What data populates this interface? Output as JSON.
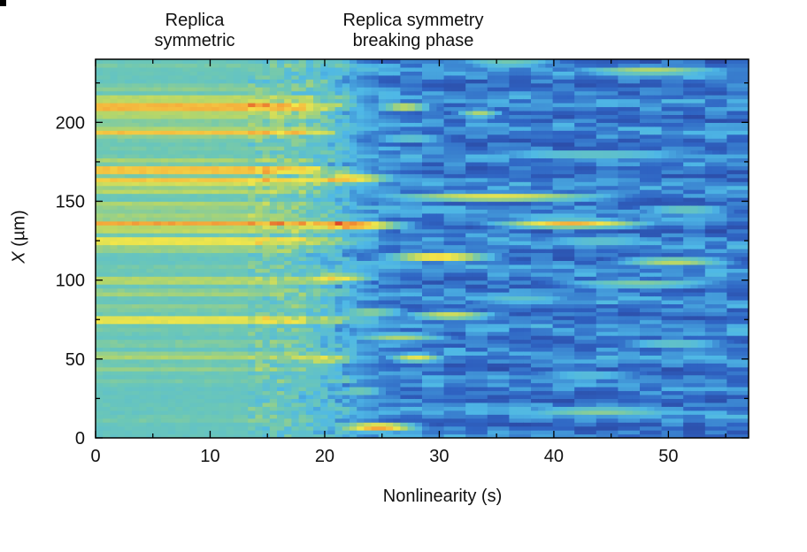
{
  "labels": {
    "phase_left": [
      "Replica",
      "symmetric"
    ],
    "phase_right": [
      "Replica symmetry",
      "breaking phase"
    ]
  },
  "chart_data": {
    "type": "heatmap",
    "xlabel": "Nonlinearity (s)",
    "ylabel_var": "X",
    "ylabel_unit": "(µm)",
    "xlim": [
      0,
      57
    ],
    "ylim": [
      0,
      240
    ],
    "x_ticks": [
      0,
      10,
      20,
      30,
      40,
      50
    ],
    "y_ticks": [
      0,
      50,
      100,
      150,
      200
    ],
    "transition_x": 21,
    "colormap": [
      "#2a3f98",
      "#2f64c3",
      "#4fb8e6",
      "#6cc7b6",
      "#b5d66a",
      "#f2e64a",
      "#f5a63a",
      "#d6291e"
    ],
    "bands_symmetric": [
      {
        "y": 5,
        "level": 0.4
      },
      {
        "y": 12,
        "level": 0.45
      },
      {
        "y": 20,
        "level": 0.42
      },
      {
        "y": 28,
        "level": 0.4
      },
      {
        "y": 36,
        "level": 0.45
      },
      {
        "y": 44,
        "level": 0.5
      },
      {
        "y": 52,
        "level": 0.58
      },
      {
        "y": 60,
        "level": 0.48
      },
      {
        "y": 68,
        "level": 0.45
      },
      {
        "y": 75,
        "level": 0.78
      },
      {
        "y": 83,
        "level": 0.5
      },
      {
        "y": 92,
        "level": 0.55
      },
      {
        "y": 100,
        "level": 0.62
      },
      {
        "y": 108,
        "level": 0.45
      },
      {
        "y": 113,
        "level": 0.12
      },
      {
        "y": 120,
        "level": 0.55
      },
      {
        "y": 125,
        "level": 0.8
      },
      {
        "y": 132,
        "level": 0.62
      },
      {
        "y": 136,
        "level": 0.86
      },
      {
        "y": 142,
        "level": 0.55
      },
      {
        "y": 148,
        "level": 0.58
      },
      {
        "y": 157,
        "level": 0.6
      },
      {
        "y": 163,
        "level": 0.82
      },
      {
        "y": 170,
        "level": 0.92
      },
      {
        "y": 176,
        "level": 0.55
      },
      {
        "y": 183,
        "level": 0.45
      },
      {
        "y": 188,
        "level": 0.45
      },
      {
        "y": 194,
        "level": 0.8
      },
      {
        "y": 200,
        "level": 0.5
      },
      {
        "y": 205,
        "level": 0.62
      },
      {
        "y": 210,
        "level": 0.96
      },
      {
        "y": 215,
        "level": 0.65
      },
      {
        "y": 222,
        "level": 0.5
      },
      {
        "y": 230,
        "level": 0.42
      },
      {
        "y": 236,
        "level": 0.45
      }
    ],
    "streaks_breaking": [
      {
        "y": 135,
        "x0": 15,
        "x1": 28,
        "level": 1.0
      },
      {
        "y": 7,
        "x0": 20,
        "x1": 29,
        "level": 0.85
      },
      {
        "y": 115,
        "x0": 24,
        "x1": 36,
        "level": 0.75
      },
      {
        "y": 136,
        "x0": 33,
        "x1": 50,
        "level": 0.72
      },
      {
        "y": 153,
        "x0": 22,
        "x1": 48,
        "level": 0.6
      },
      {
        "y": 165,
        "x0": 16,
        "x1": 27,
        "level": 0.82
      },
      {
        "y": 102,
        "x0": 16,
        "x1": 25,
        "level": 0.78
      },
      {
        "y": 50,
        "x0": 16,
        "x1": 23,
        "level": 0.8
      },
      {
        "y": 51,
        "x0": 25,
        "x1": 31,
        "level": 0.58
      },
      {
        "y": 78,
        "x0": 26,
        "x1": 36,
        "level": 0.55
      },
      {
        "y": 80,
        "x0": 20,
        "x1": 28,
        "level": 0.45
      },
      {
        "y": 64,
        "x0": 21,
        "x1": 32,
        "level": 0.45
      },
      {
        "y": 98,
        "x0": 38,
        "x1": 57,
        "level": 0.38
      },
      {
        "y": 112,
        "x0": 44,
        "x1": 57,
        "level": 0.5
      },
      {
        "y": 17,
        "x0": 34,
        "x1": 54,
        "level": 0.4
      },
      {
        "y": 233,
        "x0": 40,
        "x1": 57,
        "level": 0.48
      },
      {
        "y": 210,
        "x0": 24,
        "x1": 30,
        "level": 0.55
      },
      {
        "y": 206,
        "x0": 31,
        "x1": 36,
        "level": 0.45
      },
      {
        "y": 238,
        "x0": 30,
        "x1": 42,
        "level": 0.35
      },
      {
        "y": 180,
        "x0": 30,
        "x1": 57,
        "level": 0.32
      },
      {
        "y": 145,
        "x0": 46,
        "x1": 57,
        "level": 0.35
      },
      {
        "y": 125,
        "x0": 36,
        "x1": 52,
        "level": 0.3
      },
      {
        "y": 60,
        "x0": 44,
        "x1": 57,
        "level": 0.32
      },
      {
        "y": 30,
        "x0": 20,
        "x1": 26,
        "level": 0.4
      },
      {
        "y": 225,
        "x0": 17,
        "x1": 21,
        "level": 0.55
      },
      {
        "y": 190,
        "x0": 23,
        "x1": 32,
        "level": 0.3
      },
      {
        "y": 88,
        "x0": 30,
        "x1": 44,
        "level": 0.28
      },
      {
        "y": 40,
        "x0": 36,
        "x1": 50,
        "level": 0.26
      }
    ]
  }
}
